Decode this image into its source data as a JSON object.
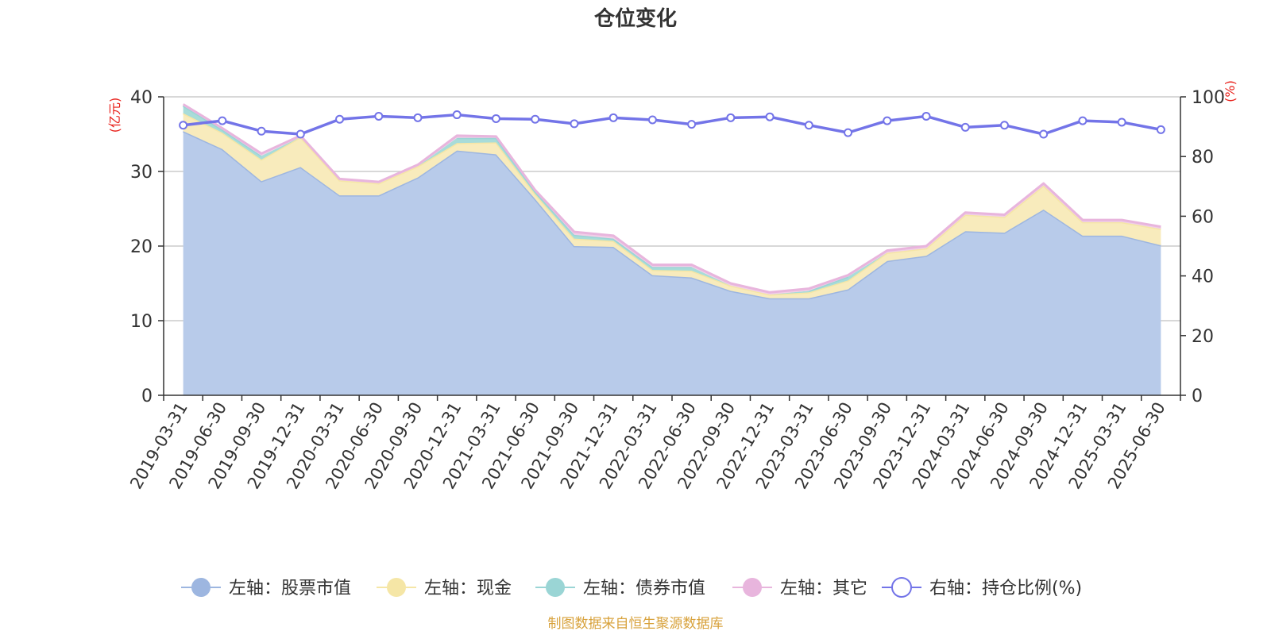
{
  "source_note": "制图数据来自恒生聚源数据库",
  "chart_data": {
    "type": "area",
    "title": "仓位变化",
    "left_axis": {
      "unit_label": "(亿元)",
      "ylim": [
        0,
        40
      ],
      "ticks": [
        0,
        10,
        20,
        30,
        40
      ]
    },
    "right_axis": {
      "unit_label": "(%)",
      "ylim": [
        0,
        100
      ],
      "ticks": [
        0,
        20,
        40,
        60,
        80,
        100
      ]
    },
    "grid": true,
    "legend_position": "bottom-center",
    "categories": [
      "2019-03-31",
      "2019-06-30",
      "2019-09-30",
      "2019-12-31",
      "2020-03-31",
      "2020-06-30",
      "2020-09-30",
      "2020-12-31",
      "2021-03-31",
      "2021-06-30",
      "2021-09-30",
      "2021-12-31",
      "2022-03-31",
      "2022-06-30",
      "2022-09-30",
      "2022-12-31",
      "2023-03-31",
      "2023-06-30",
      "2023-09-30",
      "2023-12-31",
      "2024-03-31",
      "2024-06-30",
      "2024-09-30",
      "2024-12-31",
      "2025-03-31",
      "2025-06-30"
    ],
    "series": [
      {
        "name": "左轴：股票市值",
        "axis": "left",
        "type": "area",
        "stack": true,
        "color": "#9db6e0",
        "fill": "#b8cbea",
        "values": [
          35.4,
          33.0,
          28.7,
          30.6,
          26.8,
          26.8,
          29.2,
          32.8,
          32.3,
          26.3,
          20.0,
          19.9,
          16.1,
          15.8,
          14.0,
          13.0,
          13.0,
          14.2,
          18.0,
          18.7,
          22.0,
          21.8,
          24.9,
          21.4,
          21.4,
          20.1
        ]
      },
      {
        "name": "左轴：现金",
        "axis": "left",
        "type": "area",
        "stack": true,
        "color": "#f5e6a6",
        "fill": "#f8ebbc",
        "values": [
          2.4,
          2.2,
          2.9,
          4.0,
          2.0,
          1.6,
          1.5,
          1.0,
          1.6,
          0.7,
          1.0,
          0.8,
          0.7,
          0.9,
          0.7,
          0.5,
          0.8,
          1.2,
          1.1,
          1.0,
          2.2,
          2.1,
          3.2,
          1.8,
          1.8,
          2.2
        ]
      },
      {
        "name": "左轴：债券市值",
        "axis": "left",
        "type": "area",
        "stack": true,
        "color": "#9ad5d5",
        "fill": "#a8dcd9",
        "values": [
          1.0,
          0.4,
          0.5,
          0.0,
          0.0,
          0.0,
          0.0,
          0.7,
          0.6,
          0.3,
          0.5,
          0.3,
          0.4,
          0.5,
          0.0,
          0.0,
          0.2,
          0.5,
          0.0,
          0.0,
          0.0,
          0.0,
          0.0,
          0.0,
          0.0,
          0.0
        ]
      },
      {
        "name": "左轴：其它",
        "axis": "left",
        "type": "area",
        "stack": true,
        "color": "#e8b5dd",
        "fill": "#f0cfe8",
        "values": [
          0.2,
          0.2,
          0.3,
          0.2,
          0.2,
          0.2,
          0.2,
          0.3,
          0.2,
          0.2,
          0.4,
          0.4,
          0.3,
          0.3,
          0.3,
          0.3,
          0.3,
          0.2,
          0.3,
          0.3,
          0.3,
          0.3,
          0.3,
          0.3,
          0.3,
          0.3
        ]
      },
      {
        "name": "右轴：持仓比例(%)",
        "axis": "right",
        "type": "line",
        "color": "#7374e8",
        "values": [
          90.5,
          92.0,
          88.5,
          87.5,
          92.5,
          93.5,
          93.0,
          94.0,
          92.7,
          92.5,
          91.0,
          93.0,
          92.3,
          90.8,
          93.0,
          93.3,
          90.5,
          88.0,
          92.0,
          93.5,
          89.8,
          90.5,
          87.5,
          92.0,
          91.5,
          89.0
        ]
      }
    ]
  }
}
